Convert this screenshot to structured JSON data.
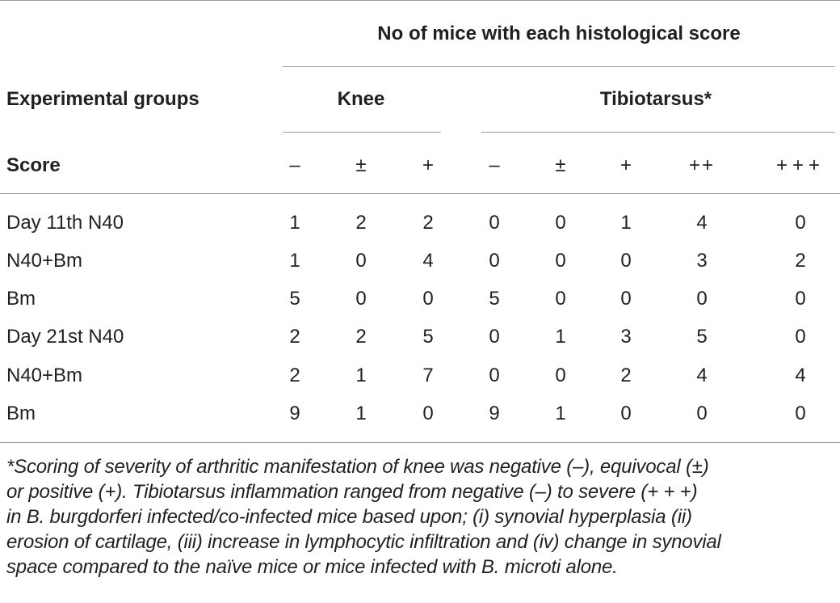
{
  "table": {
    "header": {
      "supertitle": "No of mice with each histological score",
      "group_label": "Experimental groups",
      "knee_label": "Knee",
      "tibio_label": "Tibiotarsus*",
      "score_label": "Score",
      "scores": [
        "–",
        "±",
        "+",
        "–",
        "±",
        "+",
        "++",
        "+++"
      ]
    },
    "rows": [
      {
        "group": "Day 11th N40",
        "values": [
          "1",
          "2",
          "2",
          "0",
          "0",
          "1",
          "4",
          "0"
        ]
      },
      {
        "group": "N40+Bm",
        "values": [
          "1",
          "0",
          "4",
          "0",
          "0",
          "0",
          "3",
          "2"
        ]
      },
      {
        "group": "Bm",
        "values": [
          "5",
          "0",
          "0",
          "5",
          "0",
          "0",
          "0",
          "0"
        ]
      },
      {
        "group": "Day 21st N40",
        "values": [
          "2",
          "2",
          "5",
          "0",
          "1",
          "3",
          "5",
          "0"
        ]
      },
      {
        "group": "N40+Bm",
        "values": [
          "2",
          "1",
          "7",
          "0",
          "0",
          "2",
          "4",
          "4"
        ]
      },
      {
        "group": "Bm",
        "values": [
          "9",
          "1",
          "0",
          "9",
          "1",
          "0",
          "0",
          "0"
        ]
      }
    ]
  },
  "footnote": {
    "lines": [
      "*Scoring of severity of arthritic manifestation of knee was negative (–), equivocal (±)",
      "or positive (+). Tibiotarsus inflammation ranged from negative (–) to severe (+ + +)",
      "in B. burgdorferi infected/co-infected mice based upon; (i) synovial hyperplasia (ii)",
      "erosion of cartilage, (iii) increase in lymphocytic infiltration and (iv) change in synovial",
      "space compared to the naïve mice or mice infected with B. microti alone."
    ]
  }
}
